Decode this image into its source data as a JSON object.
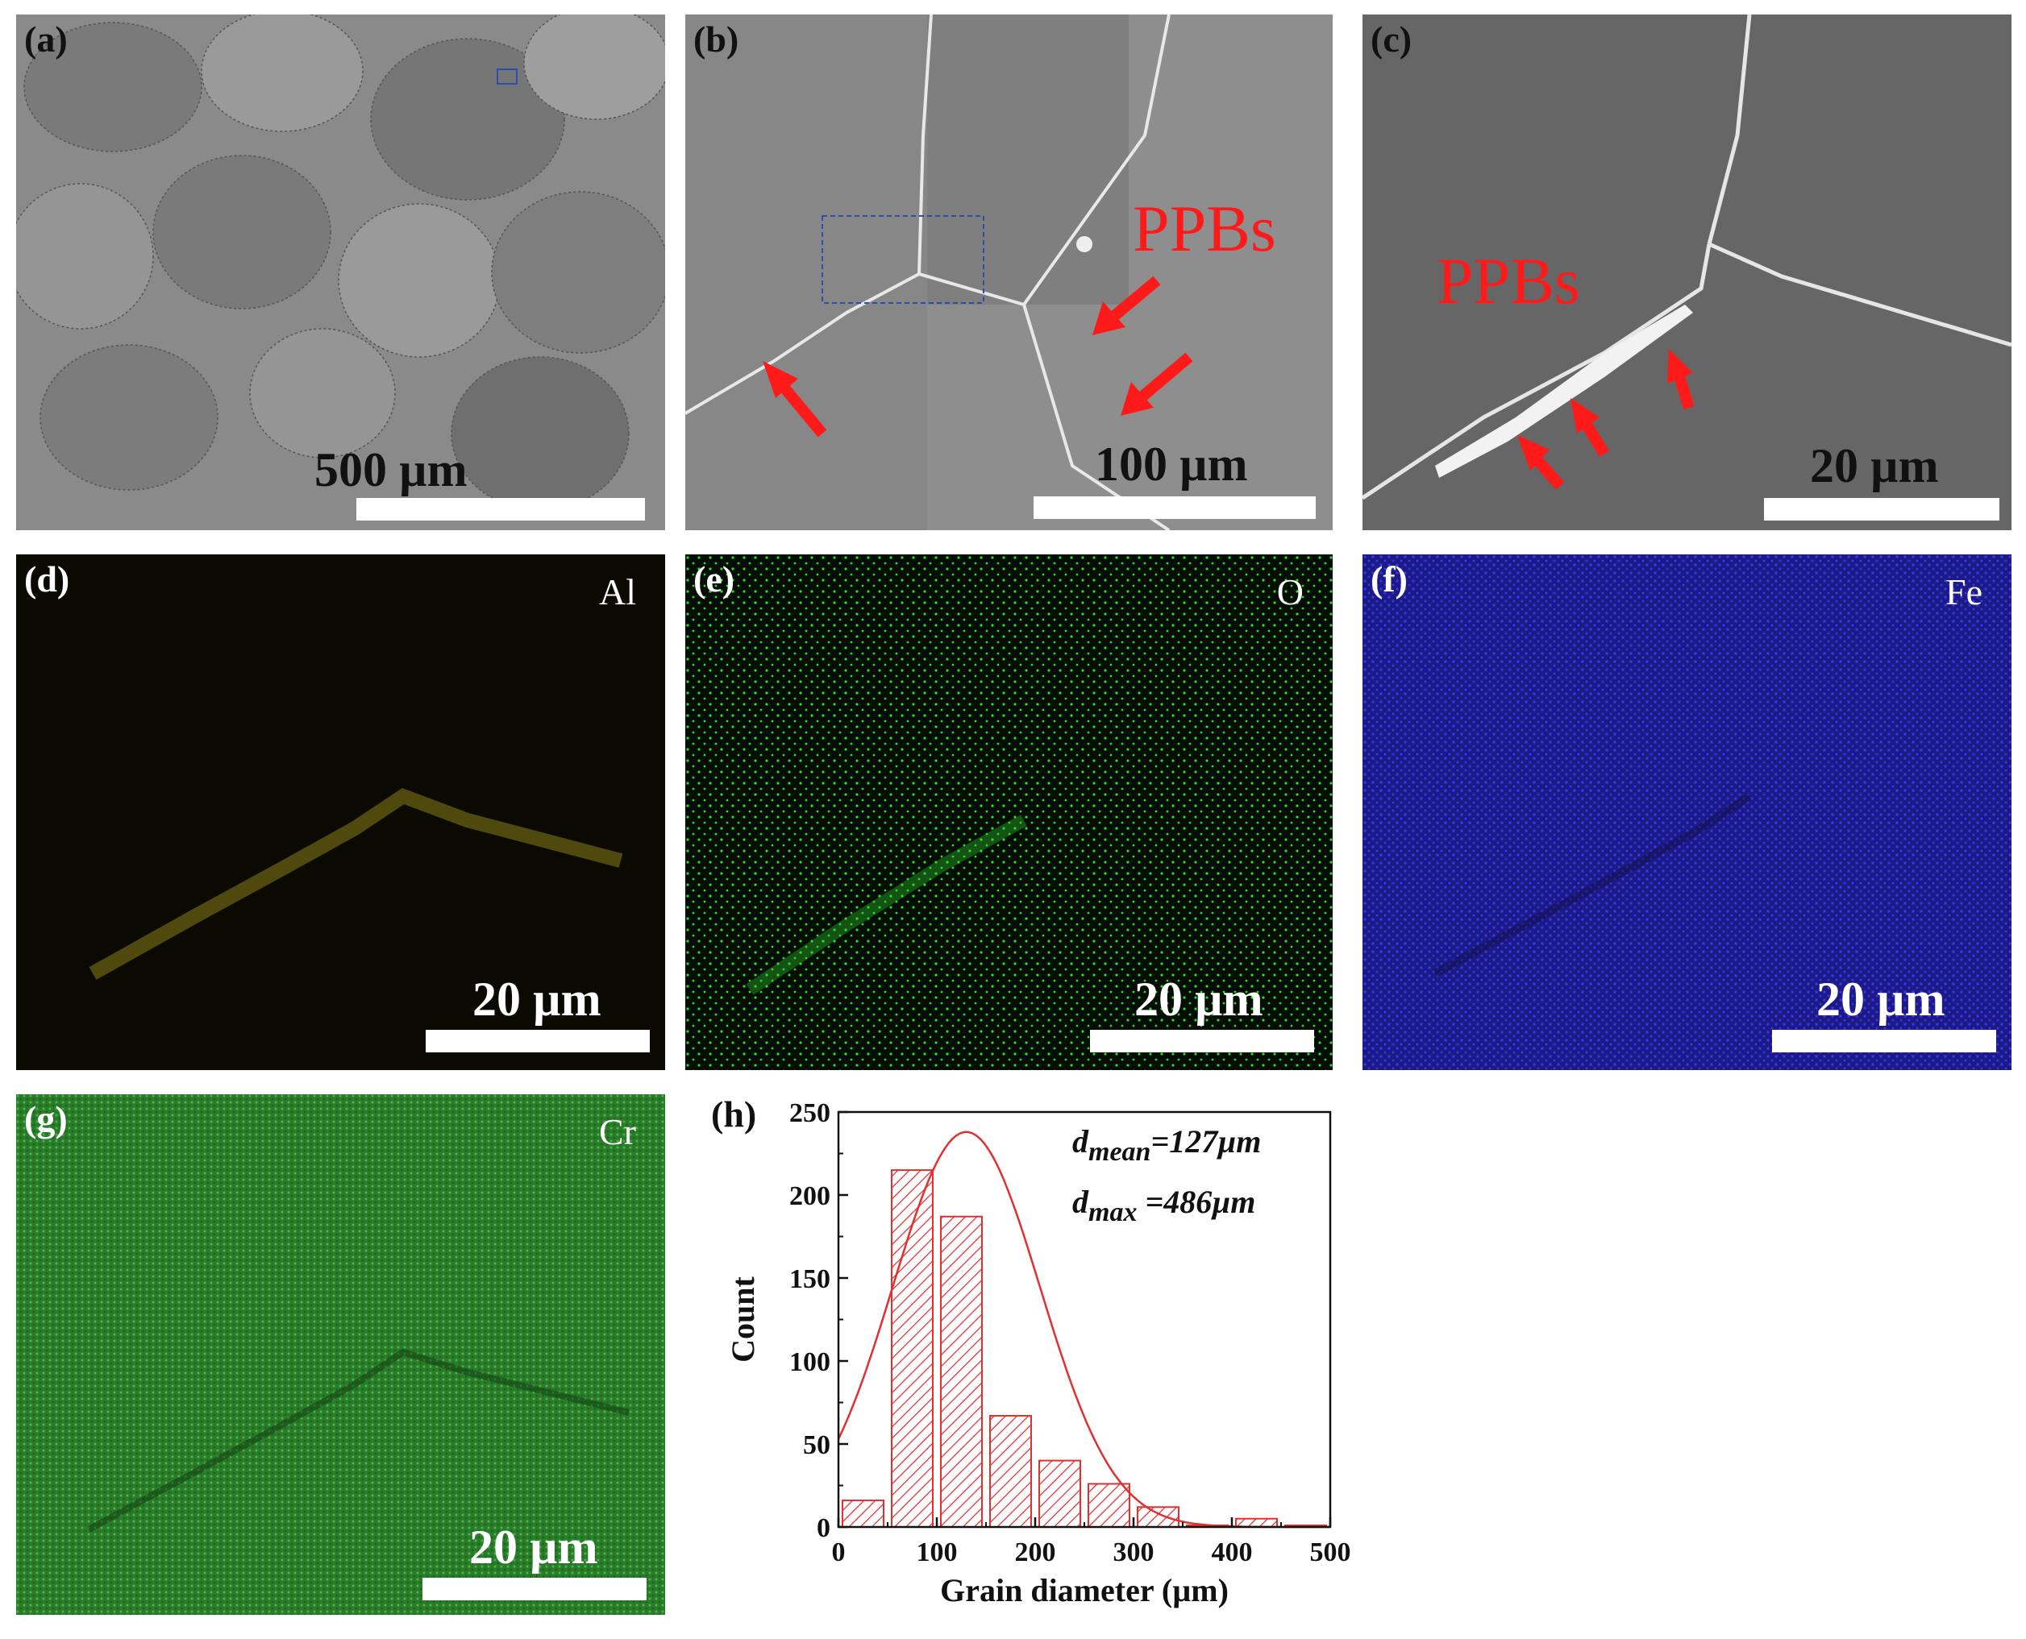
{
  "panels": {
    "a": {
      "label": "(a)",
      "scale": "500 µm"
    },
    "b": {
      "label": "(b)",
      "scale": "100 µm",
      "annotation": "PPBs"
    },
    "c": {
      "label": "(c)",
      "scale": "20 µm",
      "annotation": "PPBs"
    },
    "d": {
      "label": "(d)",
      "element": "Al",
      "scale": "20 µm"
    },
    "e": {
      "label": "(e)",
      "element": "O",
      "scale": "20 µm"
    },
    "f": {
      "label": "(f)",
      "element": "Fe",
      "scale": "20 µm"
    },
    "g": {
      "label": "(g)",
      "element": "Cr",
      "scale": "20 µm"
    },
    "h": {
      "label": "(h)"
    }
  },
  "colors": {
    "annotation_red": "#ff1a1a",
    "histogram_red": "#e03030",
    "map_al": "#b8a820",
    "map_o": "#2ed82e",
    "map_fe": "#2828e0",
    "map_cr": "#2a7c2a"
  },
  "chart_data": {
    "type": "bar",
    "xlabel": "Grain diameter (µm)",
    "ylabel": "Count",
    "xlim": [
      0,
      500
    ],
    "ylim": [
      0,
      250
    ],
    "xticks": [
      0,
      100,
      200,
      300,
      400,
      500
    ],
    "yticks": [
      0,
      50,
      100,
      150,
      200,
      250
    ],
    "bin_width": 50,
    "bins": [
      {
        "x": 25,
        "count": 16
      },
      {
        "x": 75,
        "count": 215
      },
      {
        "x": 125,
        "count": 187
      },
      {
        "x": 175,
        "count": 67
      },
      {
        "x": 225,
        "count": 40
      },
      {
        "x": 275,
        "count": 26
      },
      {
        "x": 325,
        "count": 12
      },
      {
        "x": 375,
        "count": 1
      },
      {
        "x": 425,
        "count": 5
      },
      {
        "x": 475,
        "count": 1
      }
    ],
    "fit_curve": {
      "type": "gaussian",
      "mean": 130,
      "sigma": 75,
      "peak": 238
    },
    "annotations": [
      {
        "symbol": "d",
        "subscript": "mean",
        "value": "=127µm"
      },
      {
        "symbol": "d",
        "subscript": "max",
        "value": " =486µm"
      }
    ]
  }
}
